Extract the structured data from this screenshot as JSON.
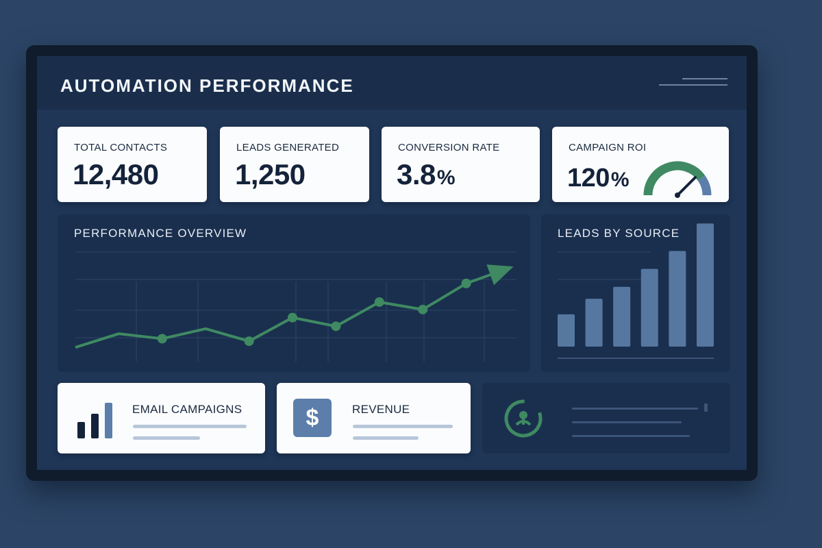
{
  "header": {
    "title": "AUTOMATION PERFORMANCE"
  },
  "kpis": [
    {
      "label": "TOTAL CONTACTS",
      "value": "12,480"
    },
    {
      "label": "LEADS GENERATED",
      "value": "1,250"
    },
    {
      "label": "CONVERSION RATE",
      "value": "3.8",
      "unit": "%"
    },
    {
      "label": "CAMPAIGN ROI",
      "value": "120",
      "unit": "%"
    }
  ],
  "performance": {
    "title": "PERFORMANCE OVERVIEW"
  },
  "leads_by_source": {
    "title": "LEADS BY SOURCE"
  },
  "bottom_cards": {
    "email": {
      "label": "EMAIL CAMPAIGNS"
    },
    "revenue": {
      "label": "REVENUE",
      "icon_glyph": "$"
    }
  },
  "icons": {
    "gauge": "gauge-icon",
    "bars": "bar-chart-icon",
    "dollar": "dollar-icon",
    "ring": "progress-ring-icon",
    "menu": "menu-icon"
  },
  "colors": {
    "accent_green": "#3f8a62",
    "accent_blue": "#5b7faa",
    "bar_blue": "#5677a0"
  },
  "chart_data": [
    {
      "type": "line",
      "title": "PERFORMANCE OVERVIEW",
      "xlabel": "",
      "ylabel": "",
      "x": [
        1,
        2,
        3,
        4,
        5,
        6,
        7,
        8,
        9,
        10,
        11
      ],
      "series": [
        {
          "values": [
            12,
            34,
            26,
            42,
            22,
            60,
            46,
            85,
            73,
            115,
            140
          ]
        }
      ],
      "markers_at": [
        2,
        4,
        5,
        6,
        7,
        8,
        9
      ],
      "ylim": [
        0,
        160
      ],
      "grid": true,
      "trend_arrow": true
    },
    {
      "type": "bar",
      "title": "LEADS BY SOURCE",
      "categories": [
        "",
        "",
        "",
        "",
        "",
        ""
      ],
      "values": [
        27,
        40,
        50,
        65,
        80,
        103
      ],
      "ylim": [
        0,
        110
      ],
      "grid": true
    }
  ]
}
